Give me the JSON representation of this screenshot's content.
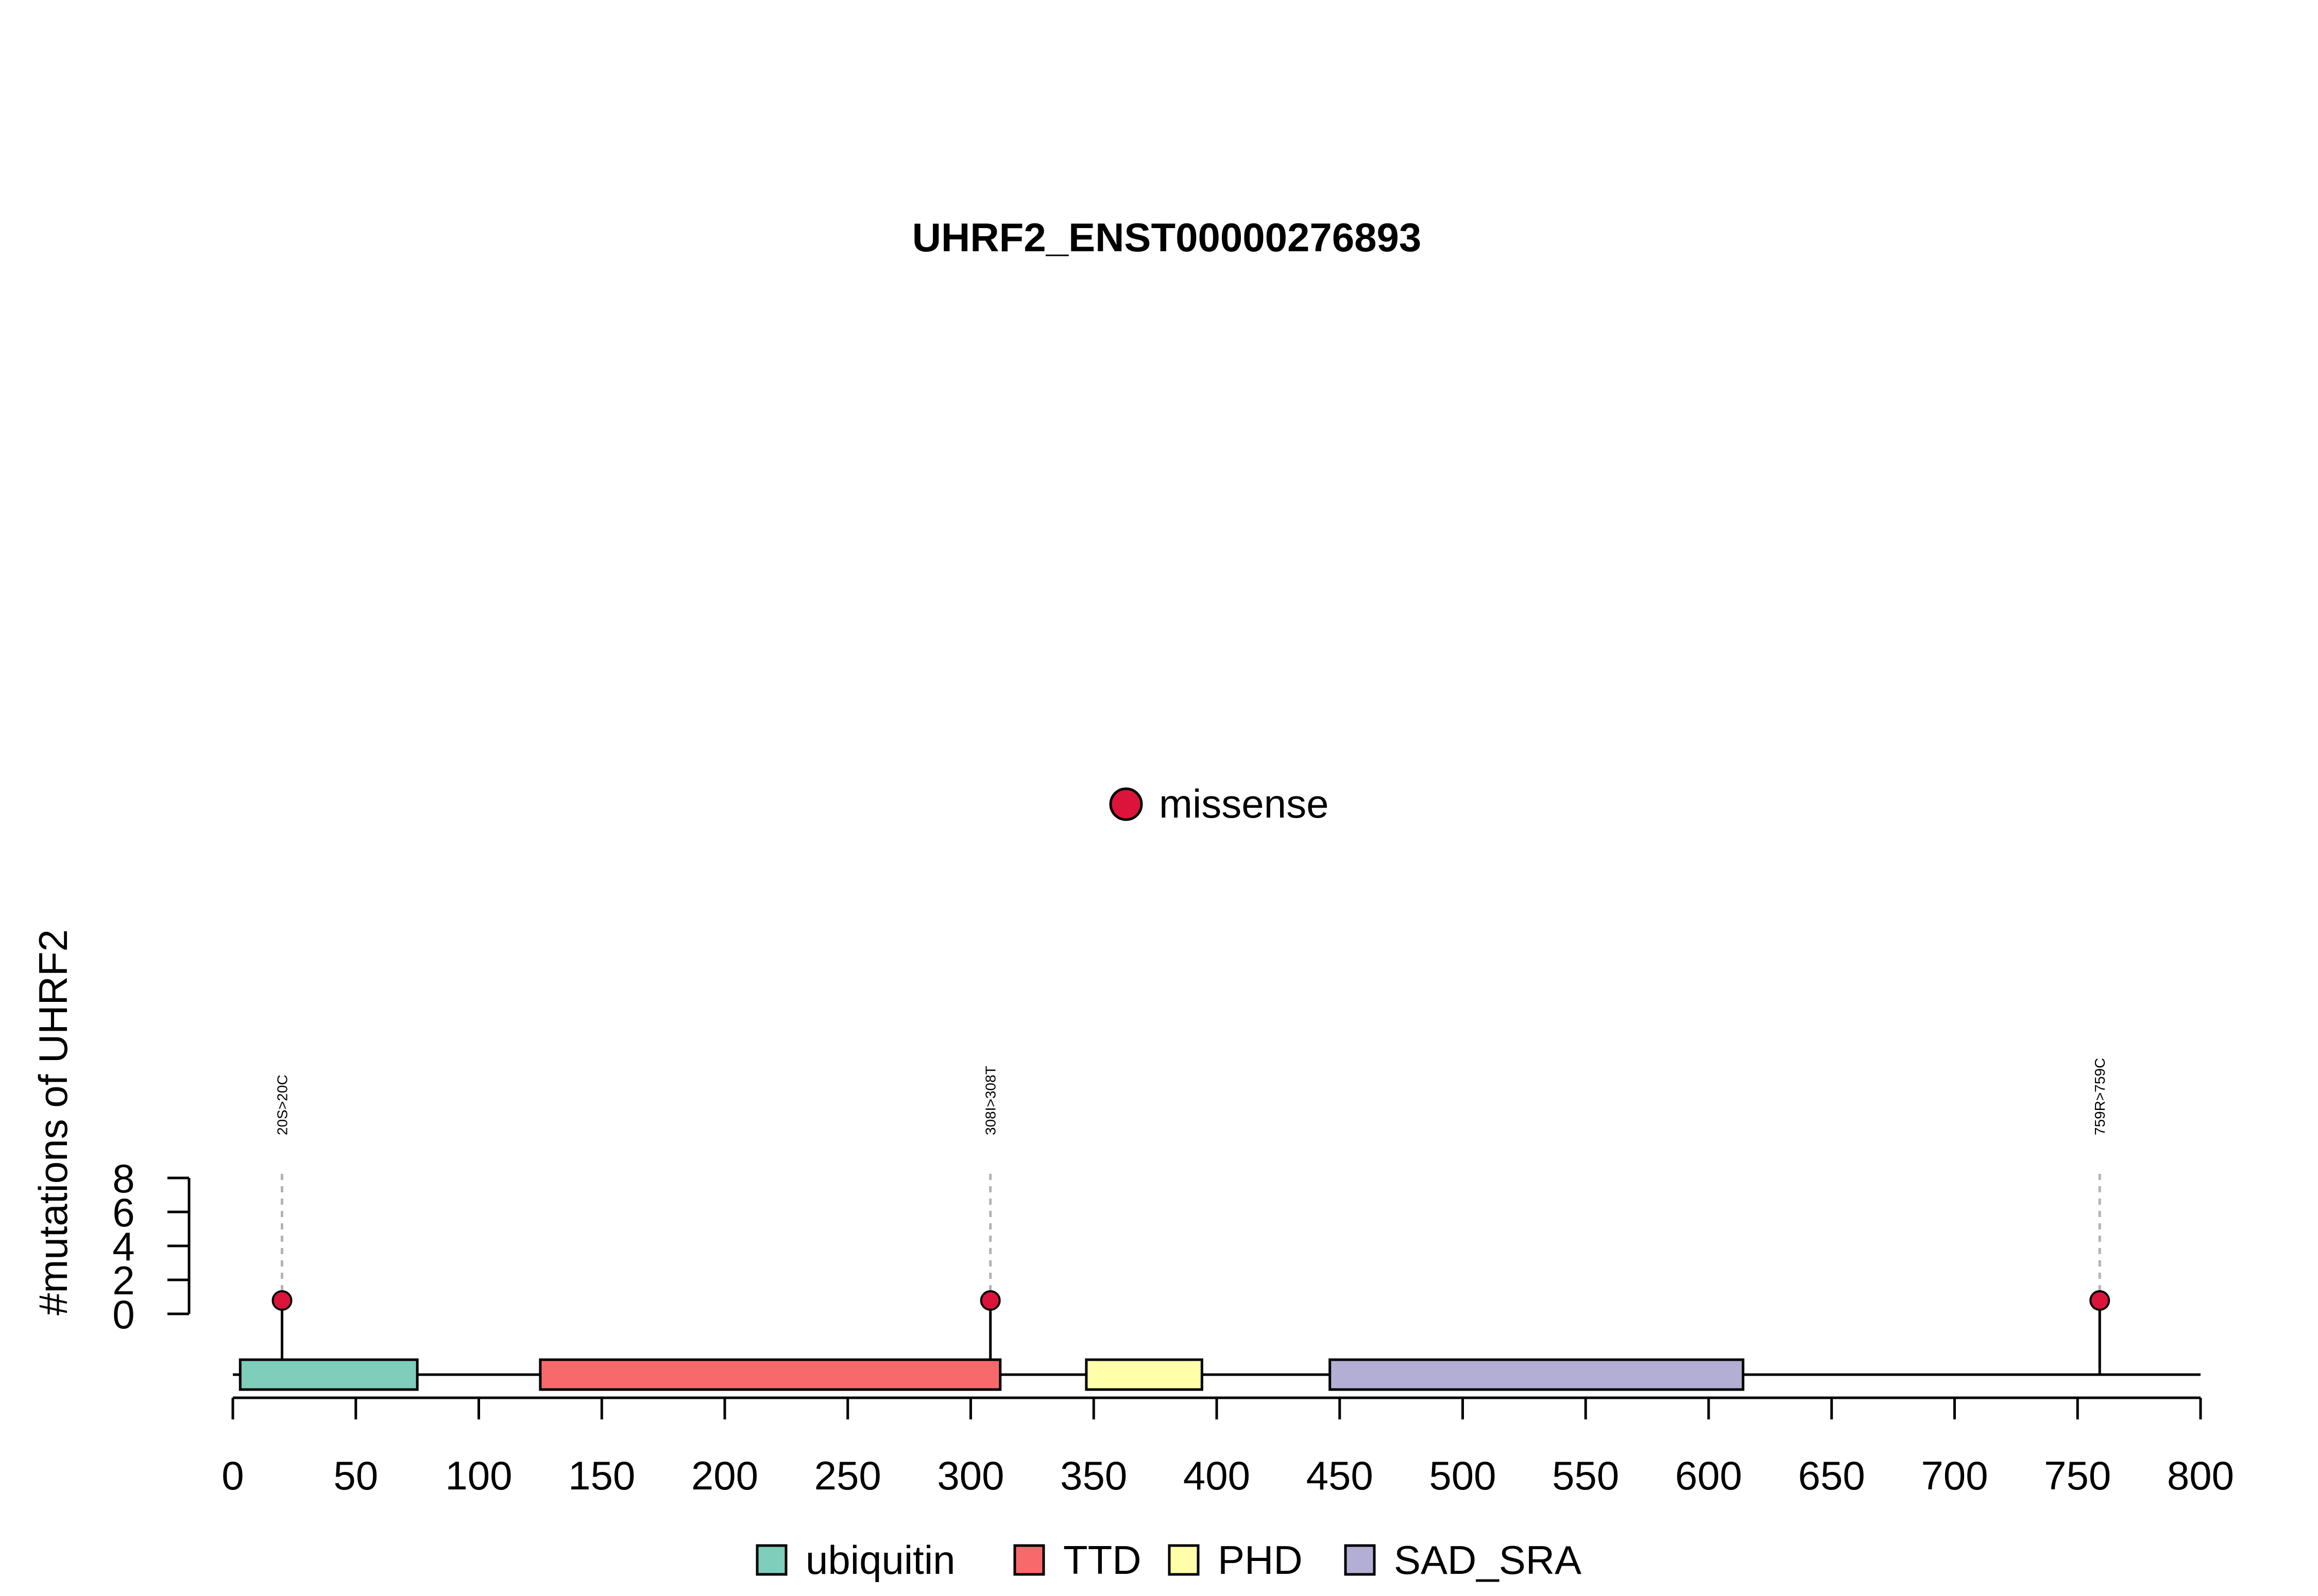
{
  "chart_data": {
    "type": "lollipop",
    "title": "UHRF2_ENST00000276893",
    "ylabel": "#mutations of UHRF2",
    "xlabel": "",
    "xlim": [
      0,
      800
    ],
    "x_ticks": [
      0,
      50,
      100,
      150,
      200,
      250,
      300,
      350,
      400,
      450,
      500,
      550,
      600,
      650,
      700,
      750,
      800
    ],
    "y_ticks": [
      0,
      2,
      4,
      6,
      8
    ],
    "ylim": [
      0,
      8
    ],
    "mutation_legend": {
      "label": "missense",
      "color": "#DC143C"
    },
    "mutations": [
      {
        "position": 20,
        "label": "20S>20C",
        "count": 1,
        "type": "missense"
      },
      {
        "position": 308,
        "label": "308I>308T",
        "count": 1,
        "type": "missense"
      },
      {
        "position": 759,
        "label": "759R>759C",
        "count": 1,
        "type": "missense"
      }
    ],
    "domains": [
      {
        "name": "ubiquitin",
        "start": 3,
        "end": 75,
        "color": "#7FCDBB"
      },
      {
        "name": "TTD",
        "start": 125,
        "end": 312,
        "color": "#F8696B"
      },
      {
        "name": "PHD",
        "start": 347,
        "end": 394,
        "color": "#FFFFAA"
      },
      {
        "name": "SAD_SRA",
        "start": 446,
        "end": 614,
        "color": "#B3AED3"
      }
    ]
  }
}
